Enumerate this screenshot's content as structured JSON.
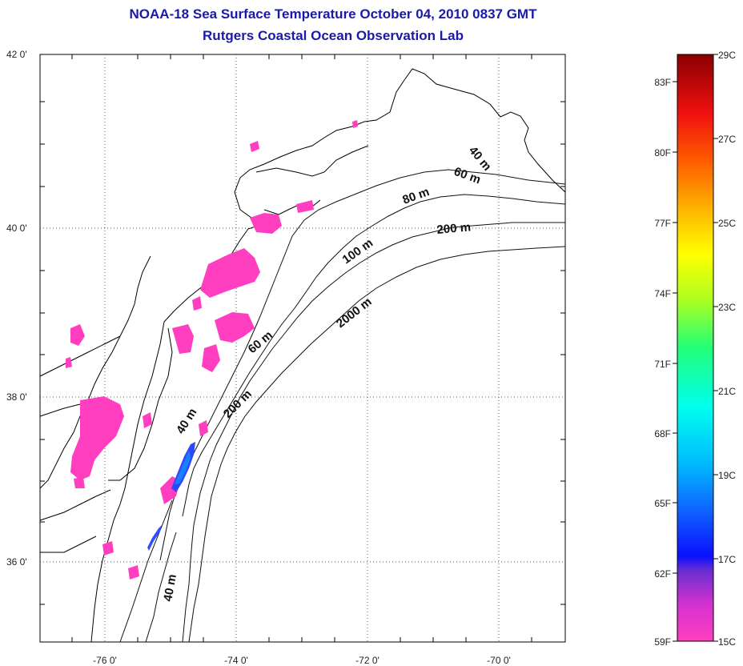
{
  "title_line1": "NOAA-18 Sea Surface Temperature October 04, 2010 0837 GMT",
  "title_line2": "Rutgers Coastal Ocean Observation Lab",
  "map": {
    "lat_ticks": [
      "42 0'",
      "40 0'",
      "38 0'",
      "36 0'"
    ],
    "lon_ticks": [
      "-76 0'",
      "-74 0'",
      "-72 0'",
      "-70 0'"
    ],
    "depth_labels": [
      "40 m",
      "60 m",
      "80 m",
      "200 m",
      "100 m",
      "2000 m",
      "60 m",
      "200 m",
      "40 m",
      "40 m"
    ]
  },
  "colorbar": {
    "f_labels": [
      "83F",
      "80F",
      "77F",
      "74F",
      "71F",
      "68F",
      "65F",
      "62F",
      "59F"
    ],
    "c_labels": [
      "29C",
      "27C",
      "25C",
      "23C",
      "21C",
      "19C",
      "17C",
      "15C"
    ],
    "colors": [
      "#ff3ec0",
      "#8a2ecc",
      "#1020ff",
      "#00a8ff",
      "#00ffff",
      "#22ff88",
      "#ffff00",
      "#ff9a00",
      "#ff1010",
      "#8a0000"
    ]
  }
}
